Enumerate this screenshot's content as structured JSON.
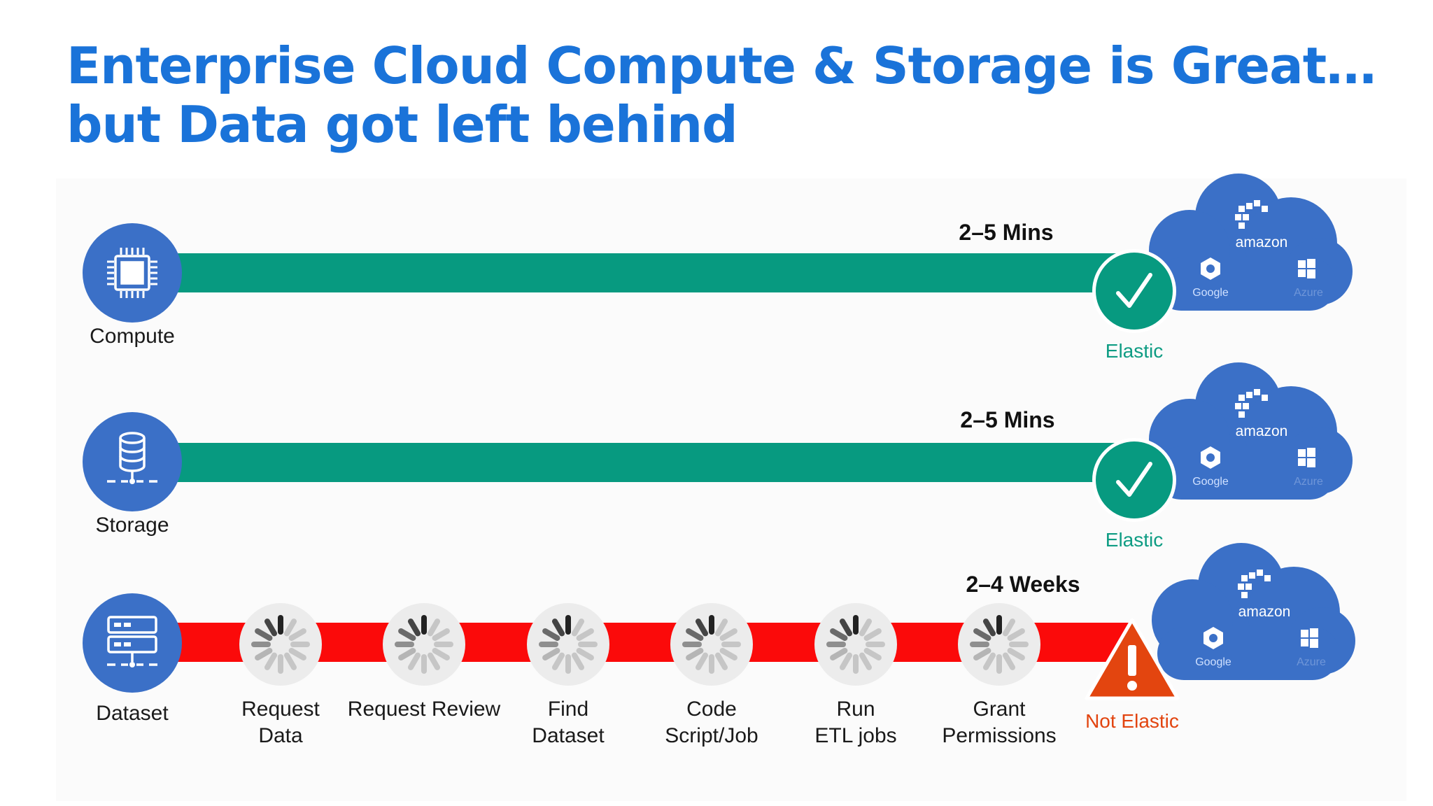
{
  "title": {
    "line1": "Enterprise Cloud Compute & Storage is Great…",
    "line2": "but Data got left behind"
  },
  "rows": [
    {
      "label": "Compute",
      "time": "2–5 Mins",
      "status": "Elastic",
      "icon": "cpu-chip-icon"
    },
    {
      "label": "Storage",
      "time": "2–5 Mins",
      "status": "Elastic",
      "icon": "database-icon"
    },
    {
      "label": "Dataset",
      "time": "2–4 Weeks",
      "status": "Not Elastic",
      "icon": "server-rack-icon"
    }
  ],
  "steps": [
    {
      "line1": "Request",
      "line2": "Data"
    },
    {
      "line1": "Request Review",
      "line2": ""
    },
    {
      "line1": "Find",
      "line2": "Dataset"
    },
    {
      "line1": "Code",
      "line2": "Script/Job"
    },
    {
      "line1": "Run",
      "line2": "ETL jobs"
    },
    {
      "line1": "Grant",
      "line2": "Permissions"
    }
  ],
  "cloud": {
    "amazon": "amazon",
    "google": "Google",
    "azure": "Azure"
  },
  "colors": {
    "title": "#1a73d9",
    "node": "#3b70c7",
    "green_bar": "#079a80",
    "red_bar": "#fb0a0a",
    "elastic_text": "#0e9c83",
    "not_elastic_text": "#e2440f",
    "warning": "#e3450f"
  }
}
